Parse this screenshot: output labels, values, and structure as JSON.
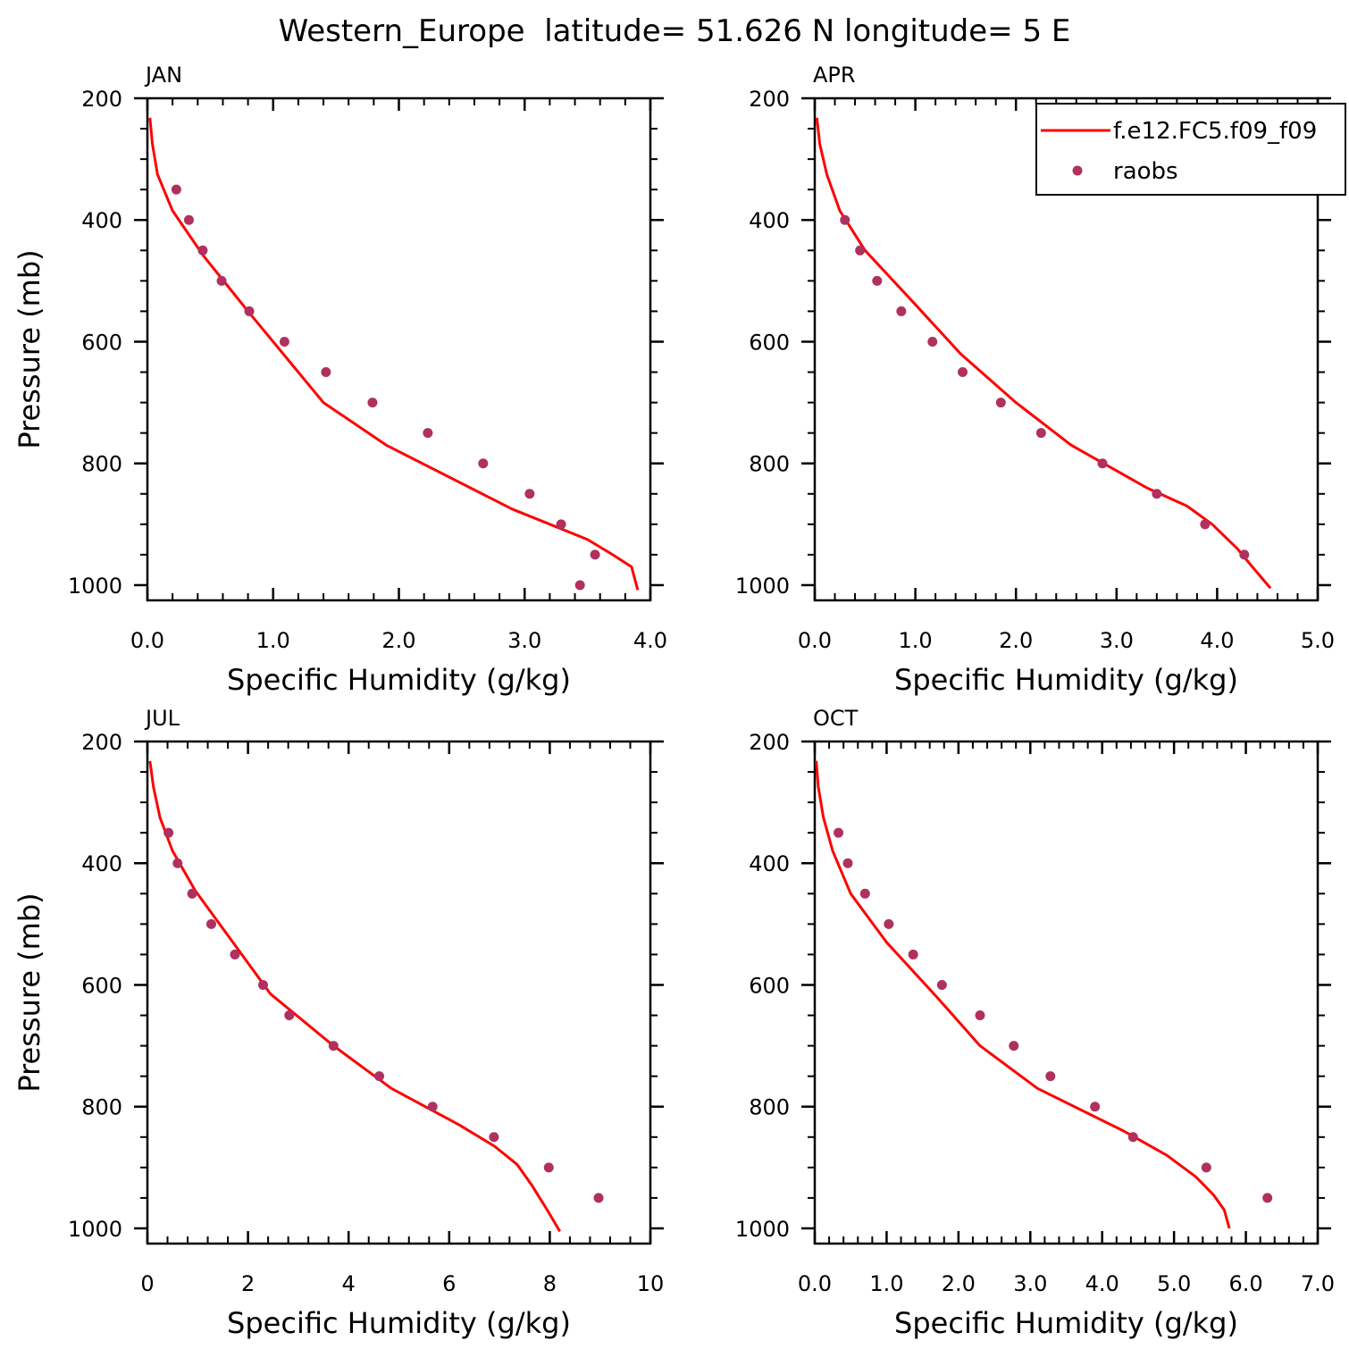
{
  "figure": {
    "title": "Western_Europe  latitude= 51.626 N longitude= 5 E",
    "colors": {
      "model": "#ff0000",
      "obs": "#b03060",
      "axis": "#000000"
    }
  },
  "legend": {
    "model_label": "f.e12.FC5.f09_f09",
    "obs_label": "raobs"
  },
  "chart_data": [
    {
      "type": "line",
      "panel": "JAN",
      "xlabel": "Specific Humidity (g/kg)",
      "ylabel": "Pressure (mb)",
      "xlim": [
        0,
        4.0
      ],
      "ylim": [
        1025,
        200
      ],
      "y_reversed": true,
      "xticks": [
        "0.0",
        "1.0",
        "2.0",
        "3.0",
        "4.0"
      ],
      "xtick_values": [
        0,
        1,
        2,
        3,
        4
      ],
      "yticks": [
        "200",
        "400",
        "600",
        "800",
        "1000"
      ],
      "ytick_values": [
        200,
        400,
        600,
        800,
        1000
      ],
      "model": {
        "q": [
          0.02,
          0.04,
          0.08,
          0.2,
          0.45,
          0.8,
          1.1,
          1.4,
          1.9,
          2.9,
          3.5,
          3.7,
          3.85,
          3.9
        ],
        "p": [
          232,
          275,
          325,
          385,
          460,
          550,
          625,
          700,
          770,
          875,
          925,
          950,
          970,
          1008
        ]
      },
      "obs": {
        "q": [
          0.23,
          0.33,
          0.44,
          0.59,
          0.81,
          1.09,
          1.42,
          1.79,
          2.23,
          2.67,
          3.04,
          3.29,
          3.56,
          3.44
        ],
        "p": [
          350,
          400,
          450,
          500,
          550,
          600,
          650,
          700,
          750,
          800,
          850,
          900,
          950,
          1000
        ]
      }
    },
    {
      "type": "line",
      "panel": "APR",
      "xlabel": "Specific Humidity (g/kg)",
      "ylabel": "",
      "xlim": [
        0,
        5.0
      ],
      "ylim": [
        1025,
        200
      ],
      "y_reversed": true,
      "xticks": [
        "0.0",
        "1.0",
        "2.0",
        "3.0",
        "4.0",
        "5.0"
      ],
      "xtick_values": [
        0,
        1,
        2,
        3,
        4,
        5
      ],
      "yticks": [
        "200",
        "400",
        "600",
        "800",
        "1000"
      ],
      "ytick_values": [
        200,
        400,
        600,
        800,
        1000
      ],
      "model": {
        "q": [
          0.02,
          0.05,
          0.12,
          0.25,
          0.5,
          0.95,
          1.45,
          2.0,
          2.55,
          3.3,
          3.7,
          3.95,
          4.2,
          4.35,
          4.53
        ],
        "p": [
          232,
          275,
          325,
          385,
          450,
          530,
          620,
          700,
          770,
          840,
          870,
          900,
          940,
          970,
          1005
        ]
      },
      "obs": {
        "q": [
          0.3,
          0.45,
          0.62,
          0.86,
          1.17,
          1.47,
          1.85,
          2.25,
          2.86,
          3.4,
          3.88,
          4.27
        ],
        "p": [
          400,
          450,
          500,
          550,
          600,
          650,
          700,
          750,
          800,
          850,
          900,
          950
        ]
      }
    },
    {
      "type": "line",
      "panel": "JUL",
      "xlabel": "Specific Humidity (g/kg)",
      "ylabel": "Pressure (mb)",
      "xlim": [
        0,
        10
      ],
      "ylim": [
        1025,
        200
      ],
      "y_reversed": true,
      "xticks": [
        "0",
        "2",
        "4",
        "6",
        "8",
        "10"
      ],
      "xtick_values": [
        0,
        2,
        4,
        6,
        8,
        10
      ],
      "yticks": [
        "200",
        "400",
        "600",
        "800",
        "1000"
      ],
      "ytick_values": [
        200,
        400,
        600,
        800,
        1000
      ],
      "model": {
        "q": [
          0.05,
          0.12,
          0.25,
          0.5,
          0.95,
          1.7,
          2.45,
          3.7,
          4.85,
          6.2,
          6.9,
          7.35,
          7.65,
          7.95,
          8.2
        ],
        "p": [
          232,
          275,
          325,
          380,
          445,
          530,
          615,
          700,
          770,
          830,
          865,
          895,
          930,
          970,
          1005
        ]
      },
      "obs": {
        "q": [
          0.42,
          0.6,
          0.89,
          1.27,
          1.74,
          2.3,
          2.82,
          3.7,
          4.61,
          5.67,
          6.89,
          7.98,
          8.97
        ],
        "p": [
          350,
          400,
          450,
          500,
          550,
          600,
          650,
          700,
          750,
          800,
          850,
          900,
          950
        ]
      }
    },
    {
      "type": "line",
      "panel": "OCT",
      "xlabel": "Specific Humidity (g/kg)",
      "ylabel": "",
      "xlim": [
        0,
        7.0
      ],
      "ylim": [
        1025,
        200
      ],
      "y_reversed": true,
      "xticks": [
        "0.0",
        "1.0",
        "2.0",
        "3.0",
        "4.0",
        "5.0",
        "6.0",
        "7.0"
      ],
      "xtick_values": [
        0,
        1,
        2,
        3,
        4,
        5,
        6,
        7
      ],
      "yticks": [
        "200",
        "400",
        "600",
        "800",
        "1000"
      ],
      "ytick_values": [
        200,
        400,
        600,
        800,
        1000
      ],
      "model": {
        "q": [
          0.02,
          0.05,
          0.12,
          0.25,
          0.5,
          1.0,
          1.7,
          2.3,
          3.1,
          4.3,
          4.9,
          5.3,
          5.55,
          5.7,
          5.77
        ],
        "p": [
          232,
          275,
          325,
          380,
          450,
          530,
          620,
          700,
          770,
          840,
          880,
          915,
          945,
          970,
          1000
        ]
      },
      "obs": {
        "q": [
          0.33,
          0.46,
          0.7,
          1.03,
          1.37,
          1.77,
          2.3,
          2.77,
          3.28,
          3.9,
          4.43,
          5.45,
          6.3
        ],
        "p": [
          350,
          400,
          450,
          500,
          550,
          600,
          650,
          700,
          750,
          800,
          850,
          900,
          950
        ]
      }
    }
  ]
}
